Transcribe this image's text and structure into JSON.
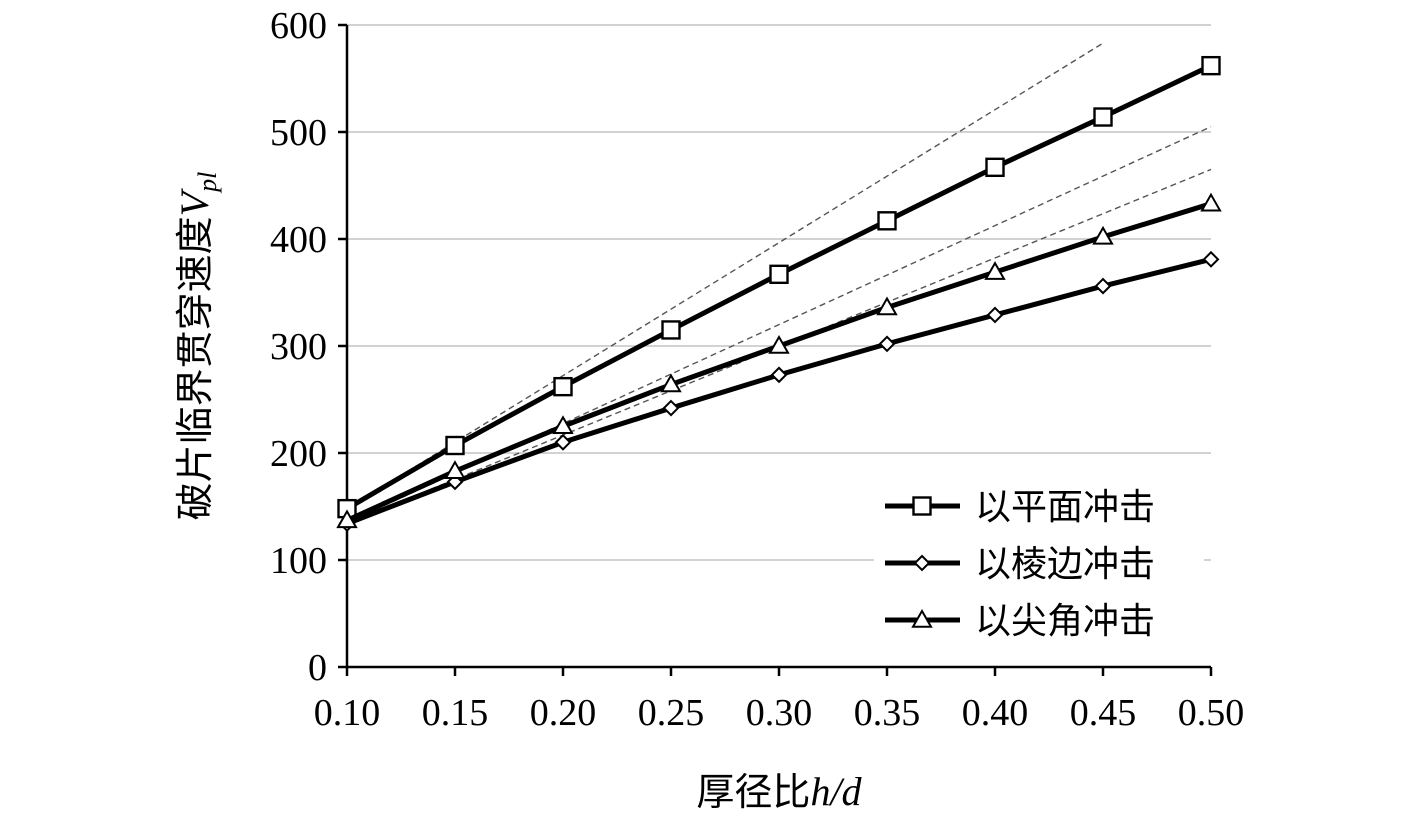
{
  "chart_data": {
    "type": "line",
    "xlabel_main": "厚径比",
    "xlabel_var": "h/d",
    "ylabel_main": "破片临界贯穿速度",
    "ylabel_var": "V",
    "ylabel_sub": "pl",
    "xlim": [
      0.1,
      0.5
    ],
    "ylim": [
      0,
      600
    ],
    "x_ticks": [
      "0.10",
      "0.15",
      "0.20",
      "0.25",
      "0.30",
      "0.35",
      "0.40",
      "0.45",
      "0.50"
    ],
    "y_ticks": [
      "0",
      "100",
      "200",
      "300",
      "400",
      "500",
      "600"
    ],
    "grid": "horizontal",
    "legend_position": "bottom-right",
    "x": [
      0.1,
      0.15,
      0.2,
      0.25,
      0.3,
      0.35,
      0.4,
      0.45,
      0.5
    ],
    "series": [
      {
        "name": "以平面冲击",
        "marker": "square",
        "values": [
          148,
          207,
          262,
          315,
          367,
          417,
          467,
          514,
          562
        ]
      },
      {
        "name": "以棱边冲击",
        "marker": "diamond",
        "values": [
          134,
          173,
          210,
          242,
          273,
          302,
          329,
          356,
          381
        ]
      },
      {
        "name": "以尖角冲击",
        "marker": "triangle",
        "values": [
          137,
          183,
          225,
          264,
          300,
          336,
          369,
          402,
          433
        ]
      }
    ],
    "reference_lines": [
      {
        "x": [
          0.1,
          0.45
        ],
        "y": [
          148,
          583
        ]
      },
      {
        "x": [
          0.1,
          0.5
        ],
        "y": [
          135,
          505
        ]
      },
      {
        "x": [
          0.1,
          0.5
        ],
        "y": [
          134,
          465
        ]
      }
    ]
  }
}
